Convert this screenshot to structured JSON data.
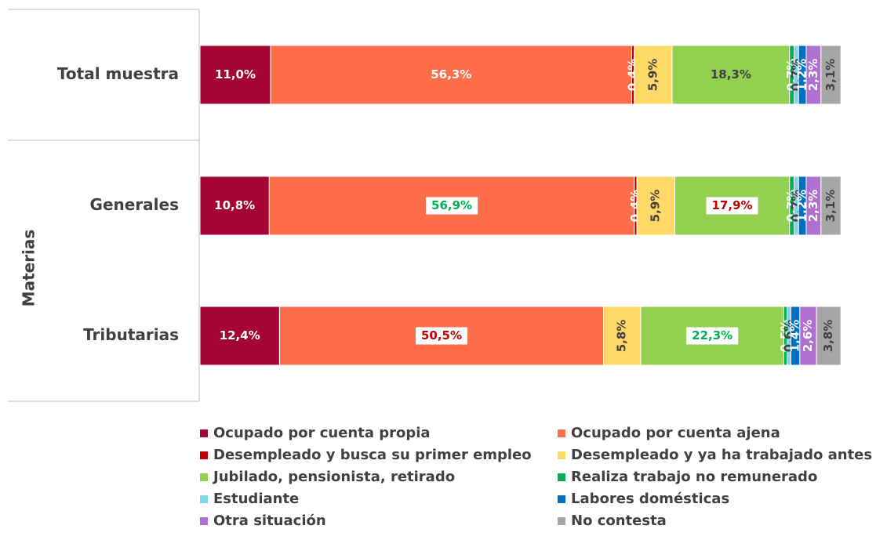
{
  "chart_data": {
    "type": "stacked_bar_horizontal",
    "y_axis_label": "Materias",
    "categories": [
      "Total muestra",
      "Generales",
      "Tributarias"
    ],
    "xlim": [
      0,
      100
    ],
    "series": [
      {
        "name": "Ocupado por cuenta propia",
        "color": "#a50535",
        "values": [
          11.0,
          10.8,
          12.4
        ],
        "value_labels": [
          "11,0%",
          "10,8%",
          "12,4%"
        ]
      },
      {
        "name": "Ocupado por cuenta ajena",
        "color": "#ff6e4a",
        "values": [
          56.3,
          56.9,
          50.5
        ],
        "value_labels": [
          "56,3%",
          "56,9%",
          "50,5%"
        ],
        "highlights": [
          null,
          "#00b050",
          "#c00000"
        ]
      },
      {
        "name": "Desempleado y busca su primer empleo",
        "color": "#c00000",
        "values": [
          0.4,
          0.4,
          null
        ],
        "value_labels": [
          "0,4%",
          "0,4%",
          null
        ]
      },
      {
        "name": "Desempleado y ya ha trabajado antes",
        "color": "#ffd966",
        "values": [
          5.9,
          5.9,
          5.8
        ],
        "value_labels": [
          "5,9%",
          "5,9%",
          "5,8%"
        ]
      },
      {
        "name": "Jubilado, pensionista, retirado",
        "color": "#92d050",
        "values": [
          18.3,
          17.9,
          22.3
        ],
        "value_labels": [
          "18,3%",
          "17,9%",
          "22,3%"
        ],
        "highlights": [
          null,
          "#c00000",
          "#00b050"
        ]
      },
      {
        "name": "Realiza trabajo no remunerado",
        "color": "#00b050",
        "values": [
          0.7,
          0.7,
          0.5
        ],
        "value_labels": [
          "0,7%",
          "0,7%",
          "0,5%"
        ]
      },
      {
        "name": "Estudiante",
        "color": "#7fd6e8",
        "values": [
          0.7,
          0.7,
          0.6
        ],
        "value_labels": [
          "0,7%",
          "0,7%",
          "0,6%"
        ]
      },
      {
        "name": "Labores domésticas",
        "color": "#0070c0",
        "values": [
          1.2,
          1.2,
          1.4
        ],
        "value_labels": [
          "1,2%",
          "1,2%",
          "1,4%"
        ]
      },
      {
        "name": "Otra situación",
        "color": "#b070d0",
        "values": [
          2.3,
          2.3,
          2.6
        ],
        "value_labels": [
          "2,3%",
          "2,3%",
          "2,6%"
        ]
      },
      {
        "name": "No contesta",
        "color": "#a6a6a6",
        "values": [
          3.1,
          3.1,
          3.8
        ],
        "value_labels": [
          "3,1%",
          "3,1%",
          "3,8%"
        ]
      }
    ]
  }
}
